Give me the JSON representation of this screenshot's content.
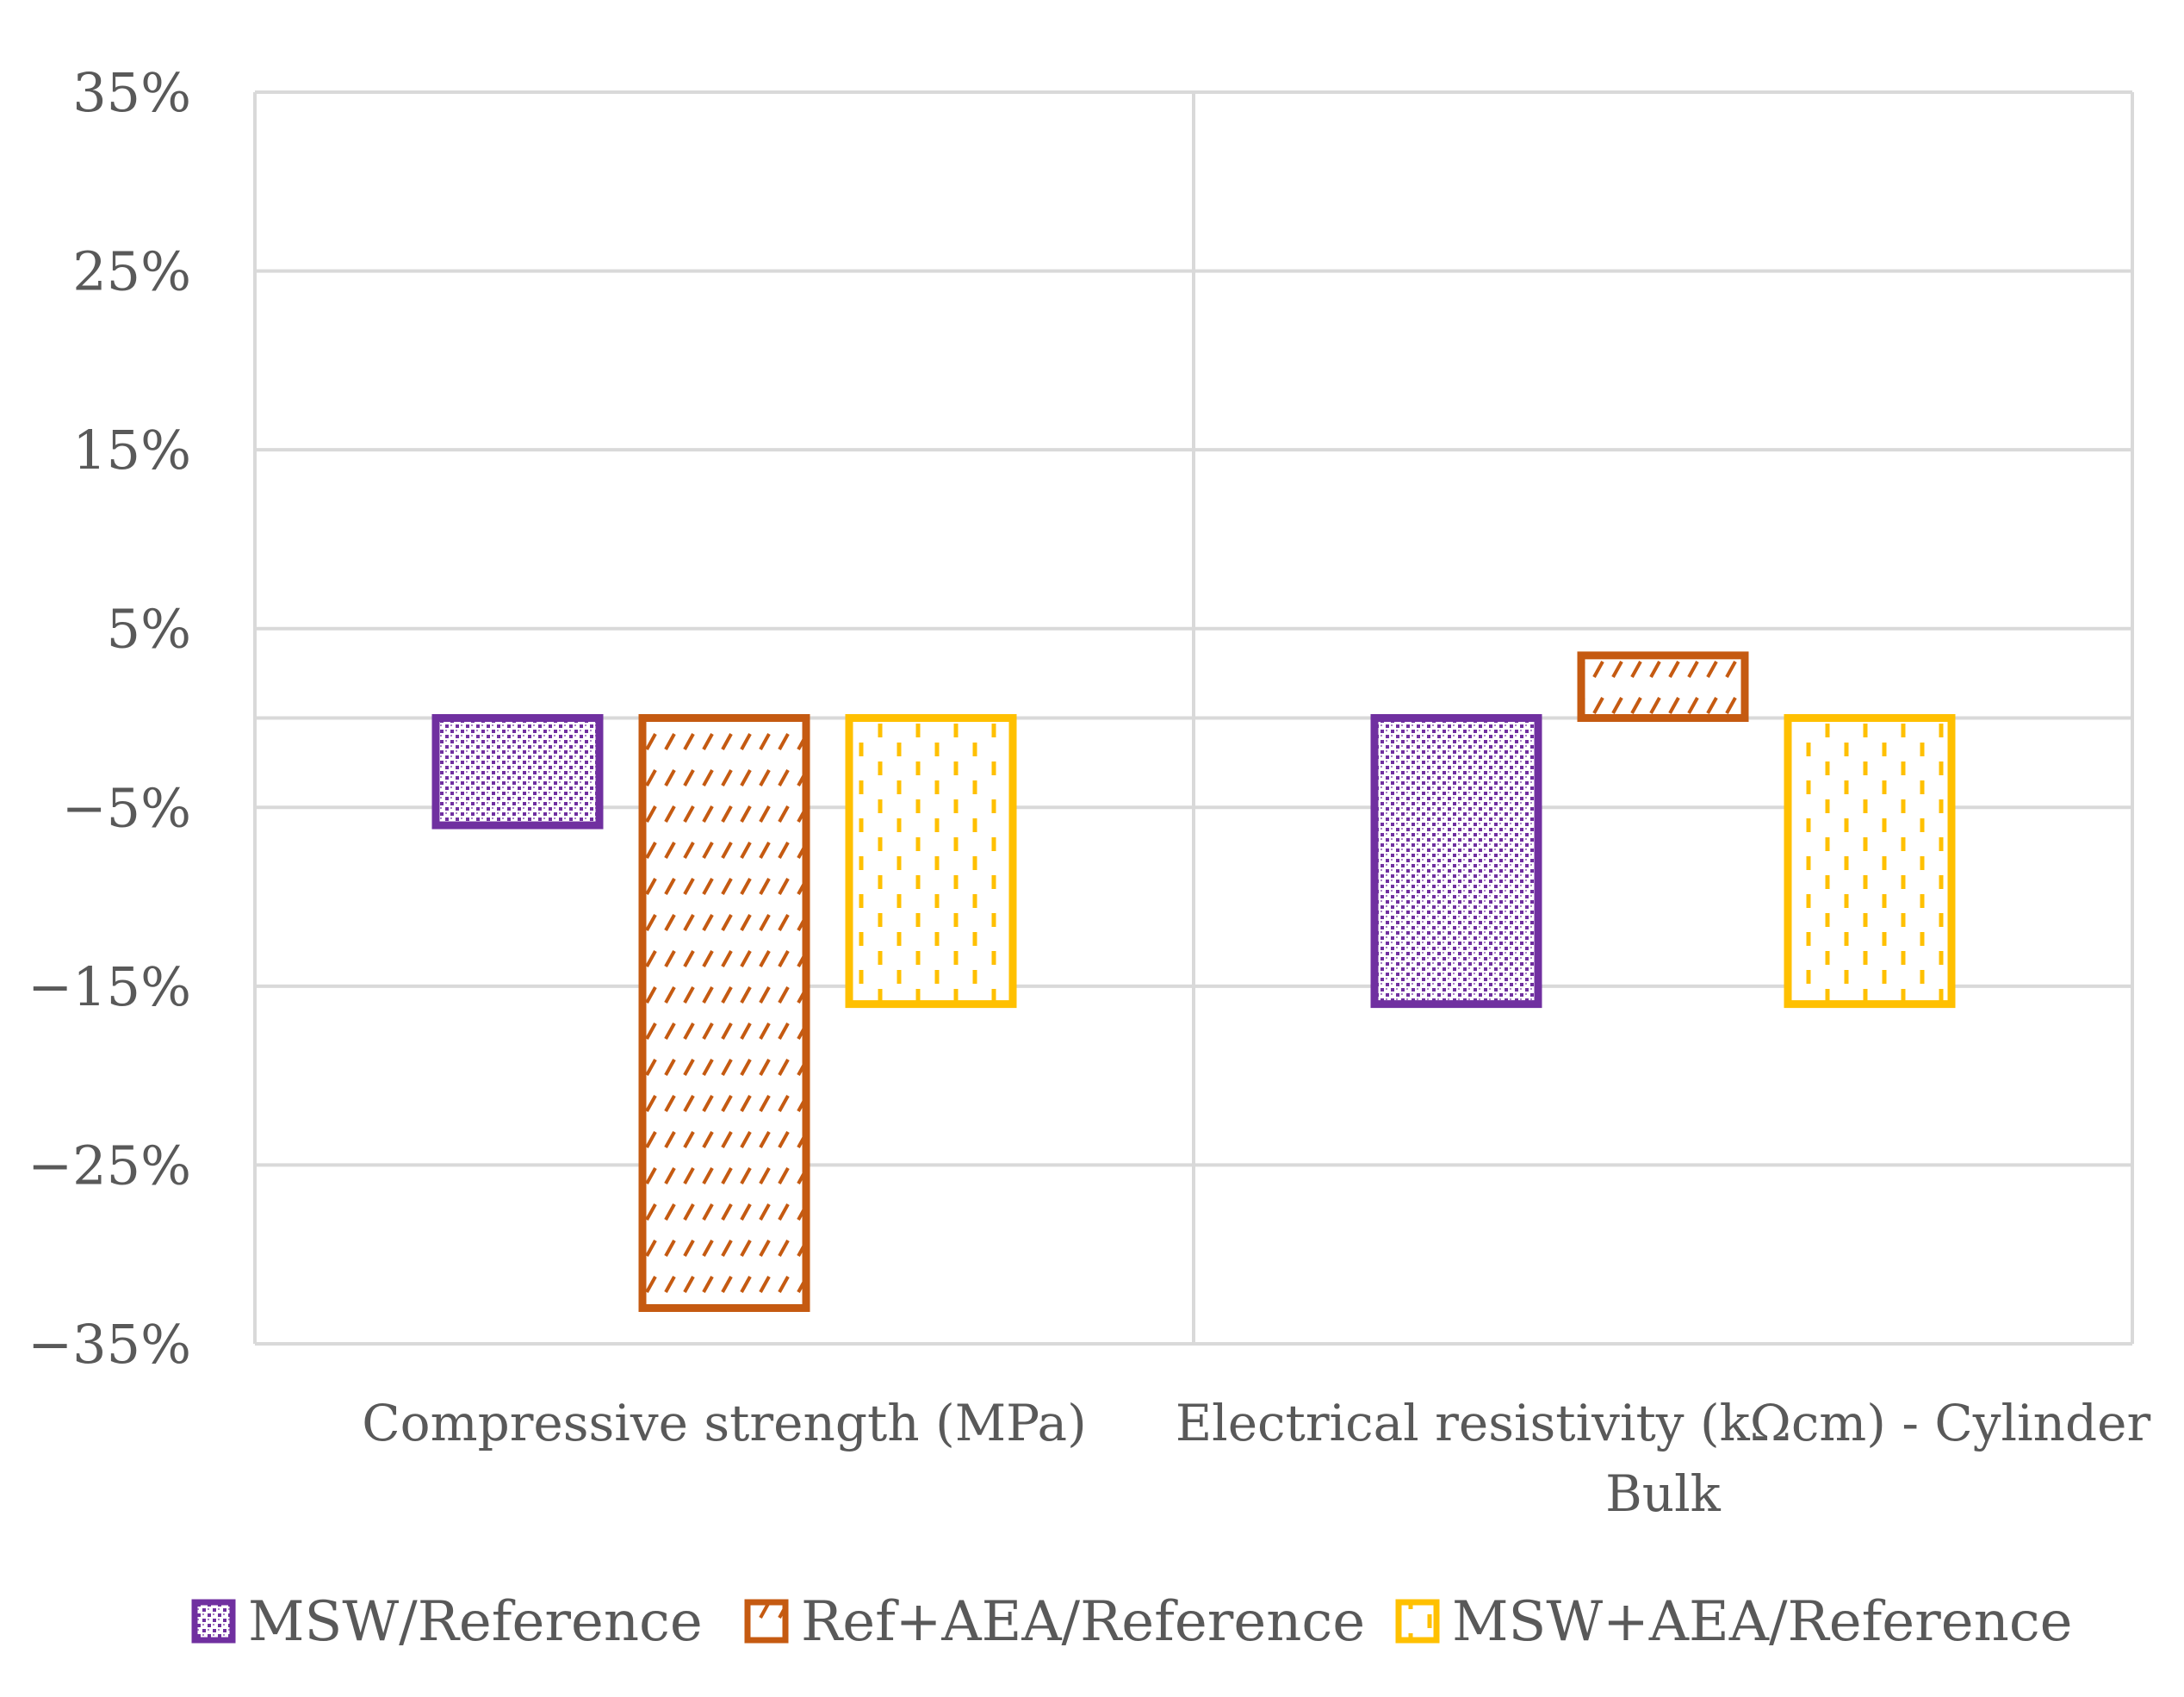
{
  "chart_data": {
    "type": "bar",
    "title": "",
    "xlabel": "",
    "ylabel": "",
    "ylim": [
      -35,
      35
    ],
    "yticks": [
      35,
      25,
      15,
      5,
      -5,
      -15,
      -25,
      -35
    ],
    "ytick_labels": [
      "35%",
      "25%",
      "15%",
      "5%",
      "−5%",
      "−15%",
      "−25%",
      "−35%"
    ],
    "grid": true,
    "legend_position": "bottom",
    "categories": [
      [
        "Compressive strength (MPa)"
      ],
      [
        "Electrical resistivity (kΩcm) - Cylinder",
        "Bulk"
      ]
    ],
    "series": [
      {
        "name": "MSW/Reference",
        "values": [
          -6,
          -16
        ],
        "color": "#7030A0",
        "pattern": "dots"
      },
      {
        "name": "Ref+AEA/Reference",
        "values": [
          -33,
          3.5
        ],
        "color": "#C55A11",
        "pattern": "diagonal-dashes"
      },
      {
        "name": "MSW+AEA/Reference",
        "values": [
          -16,
          -16
        ],
        "color": "#FFC000",
        "pattern": "vertical-dashes"
      }
    ]
  }
}
